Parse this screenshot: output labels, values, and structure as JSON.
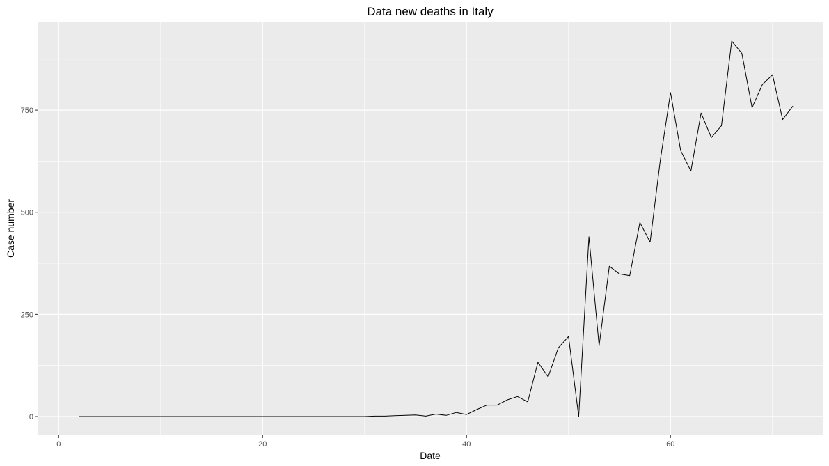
{
  "chart_data": {
    "type": "line",
    "title": "Data new deaths in Italy",
    "xlabel": "Date",
    "ylabel": "Case number",
    "xlim": [
      -2,
      75
    ],
    "ylim": [
      -46,
      965
    ],
    "x_ticks": [
      0,
      20,
      40,
      60
    ],
    "y_ticks": [
      0,
      250,
      500,
      750
    ],
    "grid": true,
    "background": "#ebebeb",
    "gridline_color": "#ffffff",
    "line_color": "#000000",
    "series": [
      {
        "x": [
          2,
          3,
          4,
          5,
          6,
          7,
          8,
          9,
          10,
          11,
          12,
          13,
          14,
          15,
          16,
          17,
          18,
          19,
          20,
          21,
          22,
          23,
          24,
          25,
          26,
          27,
          28,
          29,
          30,
          31,
          32,
          33,
          34,
          35,
          36,
          37,
          38,
          39,
          40,
          41,
          42,
          43,
          44,
          45,
          46,
          47,
          48,
          49,
          50,
          51,
          52,
          53,
          54,
          55,
          56,
          57,
          58,
          59,
          60,
          61,
          62,
          63,
          64,
          65,
          66,
          67,
          68,
          69,
          70,
          71,
          72
        ],
        "y": [
          0,
          0,
          0,
          0,
          0,
          0,
          0,
          0,
          0,
          0,
          0,
          0,
          0,
          0,
          0,
          0,
          0,
          0,
          0,
          0,
          0,
          0,
          0,
          0,
          0,
          0,
          0,
          0,
          0,
          1,
          1,
          2,
          3,
          4,
          1,
          6,
          3,
          10,
          5,
          17,
          28,
          28,
          41,
          49,
          36,
          133,
          97,
          168,
          196,
          0,
          440,
          173,
          368,
          349,
          345,
          475,
          427,
          627,
          793,
          651,
          601,
          743,
          683,
          712,
          919,
          889,
          756,
          812,
          837,
          727,
          760
        ]
      }
    ]
  }
}
